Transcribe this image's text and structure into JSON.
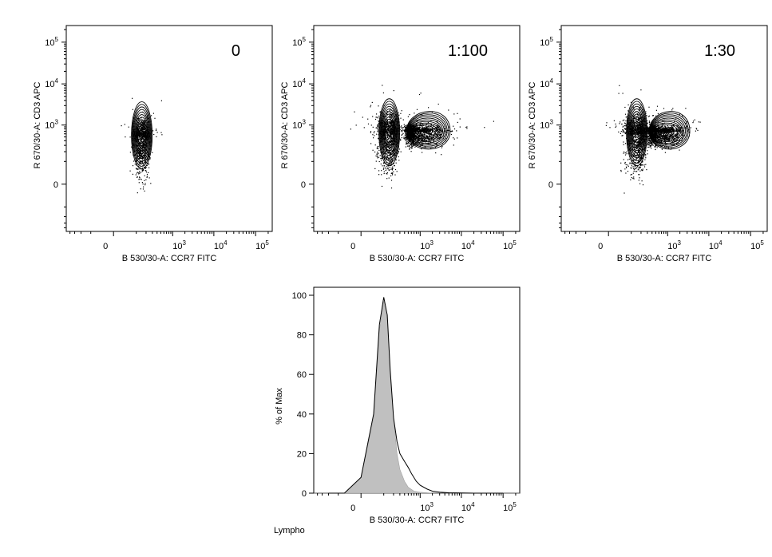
{
  "figure": {
    "footer_label": "Lympho"
  },
  "chart_data": [
    {
      "type": "contour",
      "panel_label": "0",
      "xlabel": "B 530/30-A: CCR7 FITC",
      "ylabel": "R 670/30-A: CD3 APC",
      "x_ticks": [
        "0",
        "10³",
        "10⁴",
        "10⁵"
      ],
      "y_ticks": [
        "0",
        "10³",
        "10⁴",
        "10⁵"
      ],
      "x_scale": "biexponential",
      "y_scale": "biexponential",
      "populations": [
        {
          "name": "",
          "x_center": 150,
          "y_center": 500,
          "x_spread": 120,
          "y_spread_low": 0,
          "y_spread_high": 2000
        }
      ]
    },
    {
      "type": "contour",
      "panel_label": "1:100",
      "xlabel": "B 530/30-A: CCR7 FITC",
      "ylabel": "R 670/30-A: CD3 APC",
      "x_ticks": [
        "0",
        "10³",
        "10⁴",
        "10⁵"
      ],
      "y_ticks": [
        "0",
        "10³",
        "10⁴",
        "10⁵"
      ],
      "x_scale": "biexponential",
      "y_scale": "biexponential",
      "populations": [
        {
          "name": "",
          "x_center": 150,
          "y_center": 600,
          "x_spread": 150,
          "y_spread_low": 0,
          "y_spread_high": 3000
        },
        {
          "name": "",
          "x_center": 700,
          "y_center": 700,
          "x_spread_low": 300,
          "x_spread_high": 2500,
          "y_spread_low": 100,
          "y_spread_high": 1500
        }
      ]
    },
    {
      "type": "contour",
      "panel_label": "1:30",
      "xlabel": "B 530/30-A: CCR7 FITC",
      "ylabel": "R 670/30-A: CD3 APC",
      "x_ticks": [
        "0",
        "10³",
        "10⁴",
        "10⁵"
      ],
      "y_ticks": [
        "0",
        "10³",
        "10⁴",
        "10⁵"
      ],
      "x_scale": "biexponential",
      "y_scale": "biexponential",
      "populations": [
        {
          "name": "",
          "x_center": 150,
          "y_center": 600,
          "x_spread": 150,
          "y_spread_low": 0,
          "y_spread_high": 3000
        },
        {
          "name": "",
          "x_center": 500,
          "y_center": 700,
          "x_spread_low": 250,
          "x_spread_high": 1500,
          "y_spread_low": 100,
          "y_spread_high": 1300
        }
      ]
    },
    {
      "type": "histogram",
      "xlabel": "B 530/30-A: CCR7 FITC",
      "ylabel": "% of Max",
      "x_ticks": [
        "0",
        "10³",
        "10⁴",
        "10⁵"
      ],
      "y_ticks": [
        0,
        20,
        40,
        60,
        80,
        100
      ],
      "ylim": [
        0,
        100
      ],
      "x_scale": "biexponential",
      "series": [
        {
          "name": "",
          "style": "filled-gray",
          "points": [
            [
              -200,
              0
            ],
            [
              -60,
              0
            ],
            [
              0,
              8
            ],
            [
              40,
              38
            ],
            [
              70,
              82
            ],
            [
              100,
              97
            ],
            [
              130,
              88
            ],
            [
              160,
              60
            ],
            [
              200,
              38
            ],
            [
              250,
              20
            ],
            [
              300,
              12
            ],
            [
              400,
              6
            ],
            [
              500,
              3
            ],
            [
              700,
              1
            ],
            [
              1000,
              0.5
            ],
            [
              2000,
              0
            ],
            [
              100000,
              0
            ]
          ]
        },
        {
          "name": "",
          "style": "outline",
          "points": [
            [
              -200,
              0
            ],
            [
              -60,
              0
            ],
            [
              0,
              8
            ],
            [
              40,
              40
            ],
            [
              70,
              85
            ],
            [
              100,
              99
            ],
            [
              130,
              90
            ],
            [
              160,
              62
            ],
            [
              200,
              38
            ],
            [
              250,
              26
            ],
            [
              300,
              20
            ],
            [
              400,
              16
            ],
            [
              500,
              13
            ],
            [
              600,
              10
            ],
            [
              800,
              6
            ],
            [
              1000,
              4
            ],
            [
              1500,
              2
            ],
            [
              2000,
              1
            ],
            [
              3000,
              0.5
            ],
            [
              5000,
              0.2
            ],
            [
              20000,
              0
            ],
            [
              100000,
              0
            ]
          ]
        }
      ]
    }
  ]
}
